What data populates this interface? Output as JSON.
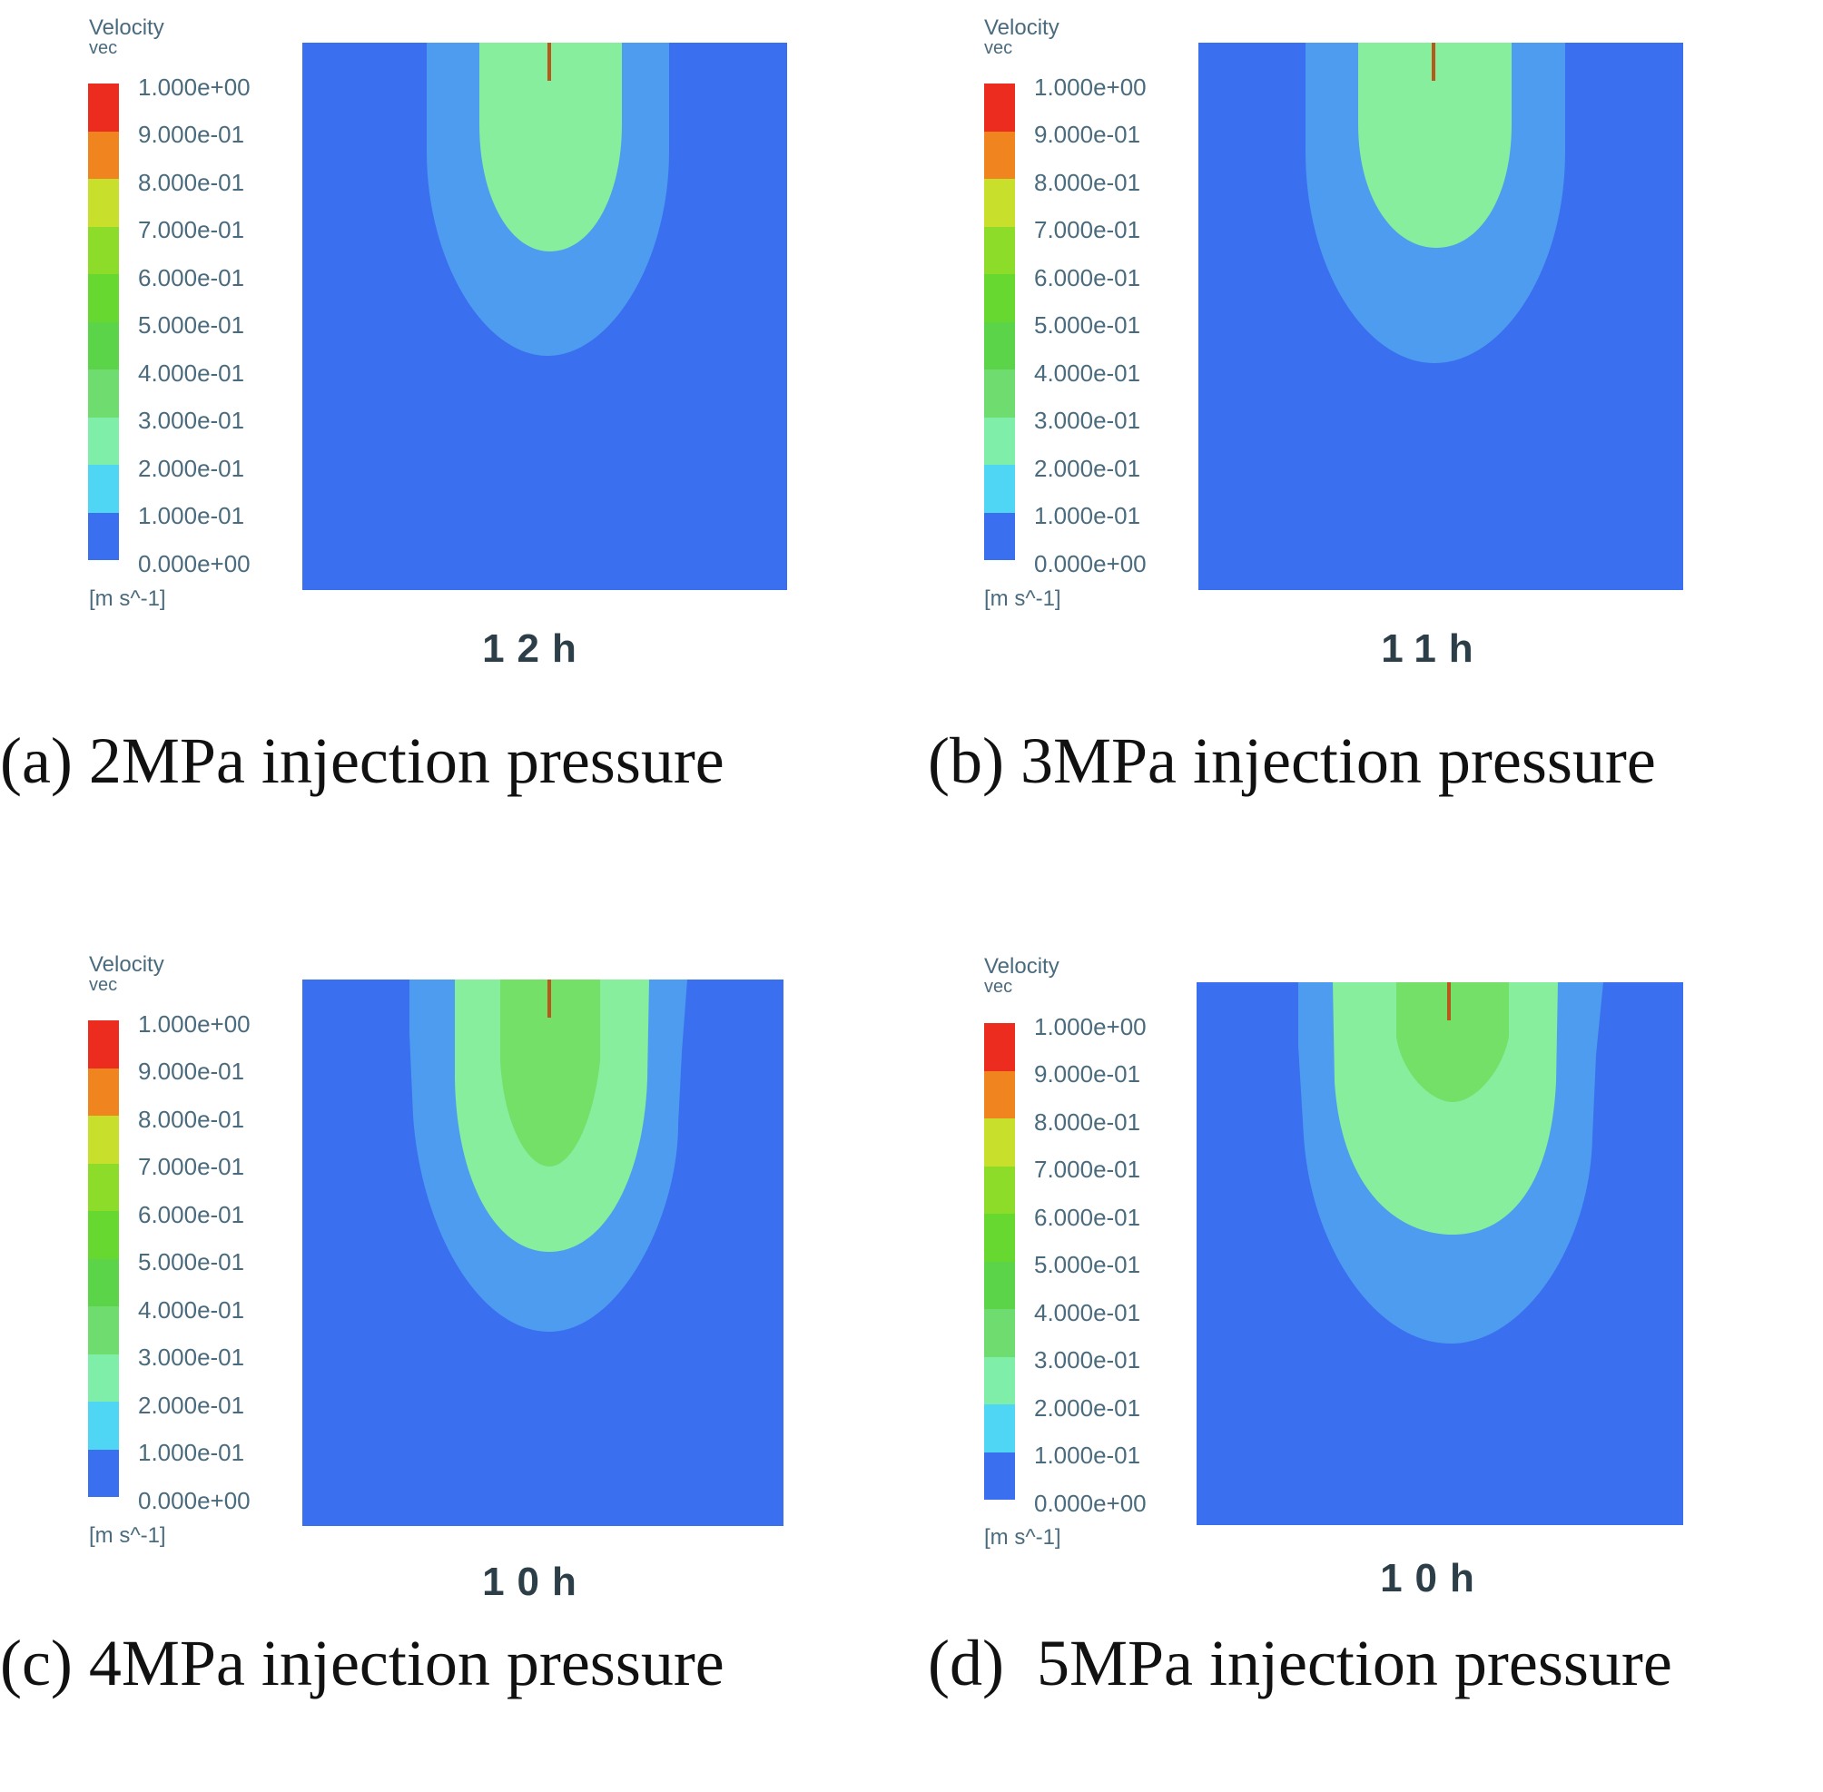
{
  "colors": {
    "background_field": "#3a6ff0",
    "band_0_1": "#3a6ff0",
    "band_1_2": "#4fa6ee",
    "band_2_3": "#7eeea9",
    "band_3_4": "#6edc6e",
    "band_4_5": "#5cd44a",
    "band_5_6": "#66d830",
    "band_6_7": "#8edc2a",
    "band_7_8": "#c8e02c",
    "band_8_9": "#f0841e",
    "band_9_10": "#ec2c1e",
    "injector": "#b8581a",
    "plume_outer": "#4e9cf0",
    "plume_inner": "#86ee9c",
    "plume_core": "#74e068"
  },
  "legend": {
    "title_line1": "Velocity",
    "title_line2": "vec",
    "units": "[m s^-1]",
    "ticks": [
      "1.000e+00",
      "9.000e-01",
      "8.000e-01",
      "7.000e-01",
      "6.000e-01",
      "5.000e-01",
      "4.000e-01",
      "3.000e-01",
      "2.000e-01",
      "1.000e-01",
      "0.000e+00"
    ]
  },
  "panels": [
    {
      "id": "a",
      "time": "12h",
      "caption": "(a) 2MPa injection pressure"
    },
    {
      "id": "b",
      "time": "11h",
      "caption": "(b) 3MPa injection pressure"
    },
    {
      "id": "c",
      "time": "10h",
      "caption": "(c) 4MPa injection pressure"
    },
    {
      "id": "d",
      "time": "10h",
      "caption": "(d)  5MPa injection pressure"
    }
  ]
}
